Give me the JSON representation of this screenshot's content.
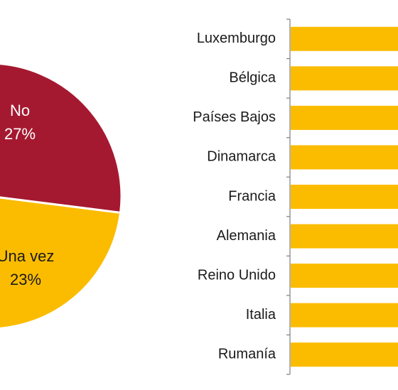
{
  "chart_data": [
    {
      "type": "pie",
      "slices": [
        {
          "label": "No",
          "value": 27,
          "value_label": "27%",
          "color": "#a51930"
        },
        {
          "label": "Una vez",
          "value": 23,
          "value_label": "23%",
          "color": "#fbbc00"
        }
      ]
    },
    {
      "type": "bar",
      "orientation": "horizontal",
      "categories": [
        "Luxemburgo",
        "Bélgica",
        "Países Bajos",
        "Dinamarca",
        "Francia",
        "Alemania",
        "Reino Unido",
        "Italia",
        "Rumanía"
      ],
      "bar_color": "#fbbc00"
    }
  ]
}
